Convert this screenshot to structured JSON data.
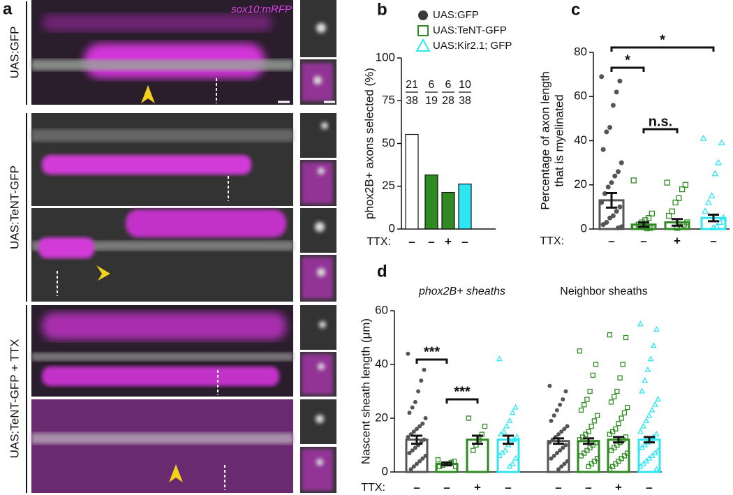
{
  "panel_labels": [
    "a",
    "b",
    "c",
    "d"
  ],
  "panel_a": {
    "rows": [
      "UAS:GFP",
      "UAS:TeNT-GFP",
      "UAS:TeNT-GFP + TTX"
    ],
    "channel_label": "sox10:mRFP"
  },
  "chart_data": [
    {
      "type": "bar",
      "ylabel": "phox2B+ axons selected (%)",
      "categories": [
        null,
        null,
        null,
        null
      ],
      "values": [
        55.3,
        31.6,
        21.4,
        26.3
      ],
      "colors": [
        "#ffffff",
        "#2f8a22",
        "#2f8a22",
        "#2ee6f2"
      ],
      "ylim": [
        0,
        100
      ],
      "yticks": [
        0,
        25,
        50,
        75,
        100
      ],
      "fractions": [
        {
          "numerator": 21,
          "denominator": 38
        },
        {
          "numerator": 6,
          "denominator": 19
        },
        {
          "numerator": 6,
          "denominator": 28
        },
        {
          "numerator": 10,
          "denominator": 38
        }
      ],
      "treatment_label": "TTX:",
      "treatment": [
        "–",
        "–",
        "+",
        "–"
      ],
      "legend": [
        {
          "name": "UAS:GFP",
          "color": "#3a3a3a",
          "marker": "circle"
        },
        {
          "name": "UAS:TeNT-GFP",
          "color": "#2f8a22",
          "marker": "square"
        },
        {
          "name": "UAS:Kir2.1; GFP",
          "color": "#2ee6f2",
          "marker": "triangle"
        }
      ]
    },
    {
      "type": "dotbar",
      "ylabel": [
        "Percentage of axon length",
        "that is myelinated"
      ],
      "categories": [
        null,
        null,
        null,
        null
      ],
      "ylim": [
        0,
        80
      ],
      "yticks": [
        0,
        20,
        40,
        60,
        80
      ],
      "bars": [
        {
          "color": "#555555",
          "marker": "circle",
          "value": 13,
          "error": 3.3,
          "points": [
            69,
            67,
            62,
            56,
            46,
            44,
            36,
            30,
            26,
            24,
            21,
            19,
            16,
            12,
            10,
            8,
            6,
            5,
            3,
            2,
            1,
            0.5
          ]
        },
        {
          "color": "#2f8a22",
          "marker": "square",
          "value": 2,
          "error": 1,
          "points": [
            22,
            7,
            5,
            4,
            3,
            2,
            1,
            1,
            0.5,
            0.3
          ]
        },
        {
          "color": "#2f8a22",
          "marker": "square",
          "value": 3,
          "error": 1.5,
          "points": [
            21,
            20,
            18,
            14,
            12,
            8,
            6,
            3,
            2,
            1,
            0.5
          ]
        },
        {
          "color": "#2ee6f2",
          "marker": "triangle",
          "value": 5,
          "error": 1.5,
          "points": [
            41,
            39,
            30,
            25,
            15,
            12,
            8,
            5,
            3,
            1,
            0.5
          ]
        }
      ],
      "significance": [
        "*",
        "*",
        "n.s."
      ],
      "treatment_label": "TTX:",
      "treatment": [
        "–",
        "–",
        "+",
        "–"
      ]
    },
    {
      "type": "dotbar",
      "ylabel": "Nascent sheath length (μm)",
      "group_labels": [
        "phox2B+ sheaths",
        "Neighbor sheaths"
      ],
      "categories": [
        null,
        null,
        null,
        null,
        null,
        null,
        null,
        null
      ],
      "ylim": [
        0,
        60
      ],
      "yticks": [
        0,
        20,
        40,
        60
      ],
      "bars": [
        {
          "color": "#555555",
          "marker": "circle",
          "value": 12,
          "error": 1.5,
          "points": [
            44,
            38,
            34,
            30,
            26,
            24,
            22,
            20,
            18,
            17,
            16,
            15,
            14,
            13,
            12,
            11,
            10,
            9,
            8,
            7,
            6,
            5,
            4,
            3,
            2,
            1
          ]
        },
        {
          "color": "#2f8a22",
          "marker": "square",
          "value": 3,
          "error": 0.5,
          "points": [
            4.5,
            4,
            3.5,
            3,
            3,
            2.5,
            2,
            2
          ]
        },
        {
          "color": "#2f8a22",
          "marker": "square",
          "value": 12,
          "error": 1.5,
          "points": [
            20,
            17,
            14,
            12,
            10,
            8
          ]
        },
        {
          "color": "#2ee6f2",
          "marker": "triangle",
          "value": 12,
          "error": 1.5,
          "points": [
            42,
            24,
            22,
            19,
            17,
            15,
            14,
            13,
            12,
            11,
            10,
            8,
            7,
            6,
            5,
            3,
            2
          ]
        },
        {
          "color": "#555555",
          "marker": "circle",
          "value": 11.5,
          "error": 1,
          "points": [
            32,
            30,
            27,
            25,
            23,
            21,
            19,
            17,
            16,
            15,
            14,
            13,
            12,
            11,
            10,
            9,
            8,
            7,
            6,
            5,
            4,
            3,
            2,
            1
          ]
        },
        {
          "color": "#2f8a22",
          "marker": "square",
          "value": 11.5,
          "error": 1,
          "points": [
            45,
            40,
            36,
            30,
            27,
            25,
            23,
            21,
            19,
            17,
            15,
            14,
            13,
            12,
            11,
            10,
            9,
            8,
            7,
            6,
            5,
            4,
            3,
            2
          ]
        },
        {
          "color": "#2f8a22",
          "marker": "square",
          "value": 12,
          "error": 1,
          "points": [
            51,
            50,
            40,
            35,
            30,
            28,
            26,
            24,
            22,
            20,
            18,
            16,
            15,
            14,
            13,
            12,
            11,
            10,
            9,
            8,
            7,
            6,
            5,
            4,
            3,
            2,
            1
          ]
        },
        {
          "color": "#2ee6f2",
          "marker": "triangle",
          "value": 12,
          "error": 1,
          "points": [
            55,
            53,
            47,
            42,
            38,
            34,
            30,
            27,
            25,
            23,
            21,
            19,
            17,
            15,
            14,
            13,
            12,
            11,
            10,
            9,
            8,
            7,
            6,
            5,
            4,
            3,
            2,
            1
          ]
        }
      ],
      "significance": [
        "***",
        "***"
      ],
      "treatment_label": "TTX:",
      "treatment": [
        "–",
        "–",
        "+",
        "–",
        "–",
        "–",
        "+",
        "–"
      ]
    }
  ]
}
